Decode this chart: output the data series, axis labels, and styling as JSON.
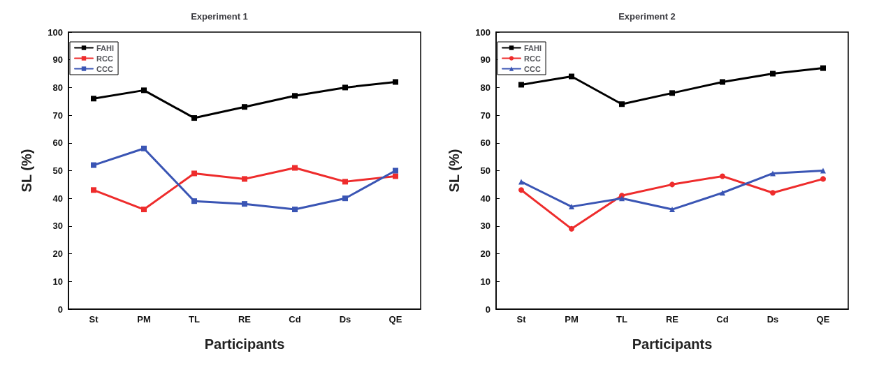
{
  "chart_data": [
    {
      "type": "line",
      "title": "Experiment 1",
      "xlabel": "Participants",
      "ylabel": "SL (%)",
      "categories": [
        "St",
        "PM",
        "TL",
        "RE",
        "Cd",
        "Ds",
        "QE"
      ],
      "ylim": [
        0,
        100
      ],
      "yticks": [
        0,
        10,
        20,
        30,
        40,
        50,
        60,
        70,
        80,
        90,
        100
      ],
      "grid": false,
      "legend": "top left",
      "line_style": "solid",
      "series": [
        {
          "name": "FAHI",
          "color": "#000000",
          "marker": "square",
          "values": [
            76,
            79,
            69,
            73,
            77,
            80,
            82
          ]
        },
        {
          "name": "RCC",
          "color": "#ee2c2c",
          "marker": "square",
          "values": [
            43,
            36,
            49,
            47,
            51,
            46,
            48
          ]
        },
        {
          "name": "CCC",
          "color": "#3a55b4",
          "marker": "square",
          "values": [
            52,
            58,
            39,
            38,
            36,
            40,
            50
          ]
        }
      ]
    },
    {
      "type": "line",
      "title": "Experiment 2",
      "xlabel": "Participants",
      "ylabel": "SL (%)",
      "categories": [
        "St",
        "PM",
        "TL",
        "RE",
        "Cd",
        "Ds",
        "QE"
      ],
      "ylim": [
        0,
        100
      ],
      "yticks": [
        0,
        10,
        20,
        30,
        40,
        50,
        60,
        70,
        80,
        90,
        100
      ],
      "grid": false,
      "legend": "top left",
      "line_style": "solid",
      "series": [
        {
          "name": "FAHI",
          "color": "#000000",
          "marker": "square",
          "values": [
            81,
            84,
            74,
            78,
            82,
            85,
            87
          ]
        },
        {
          "name": "RCC",
          "color": "#ee2c2c",
          "marker": "circle",
          "values": [
            43,
            29,
            41,
            45,
            48,
            42,
            47
          ]
        },
        {
          "name": "CCC",
          "color": "#3a55b4",
          "marker": "triangle",
          "values": [
            46,
            37,
            40,
            36,
            42,
            49,
            50
          ]
        }
      ]
    }
  ]
}
